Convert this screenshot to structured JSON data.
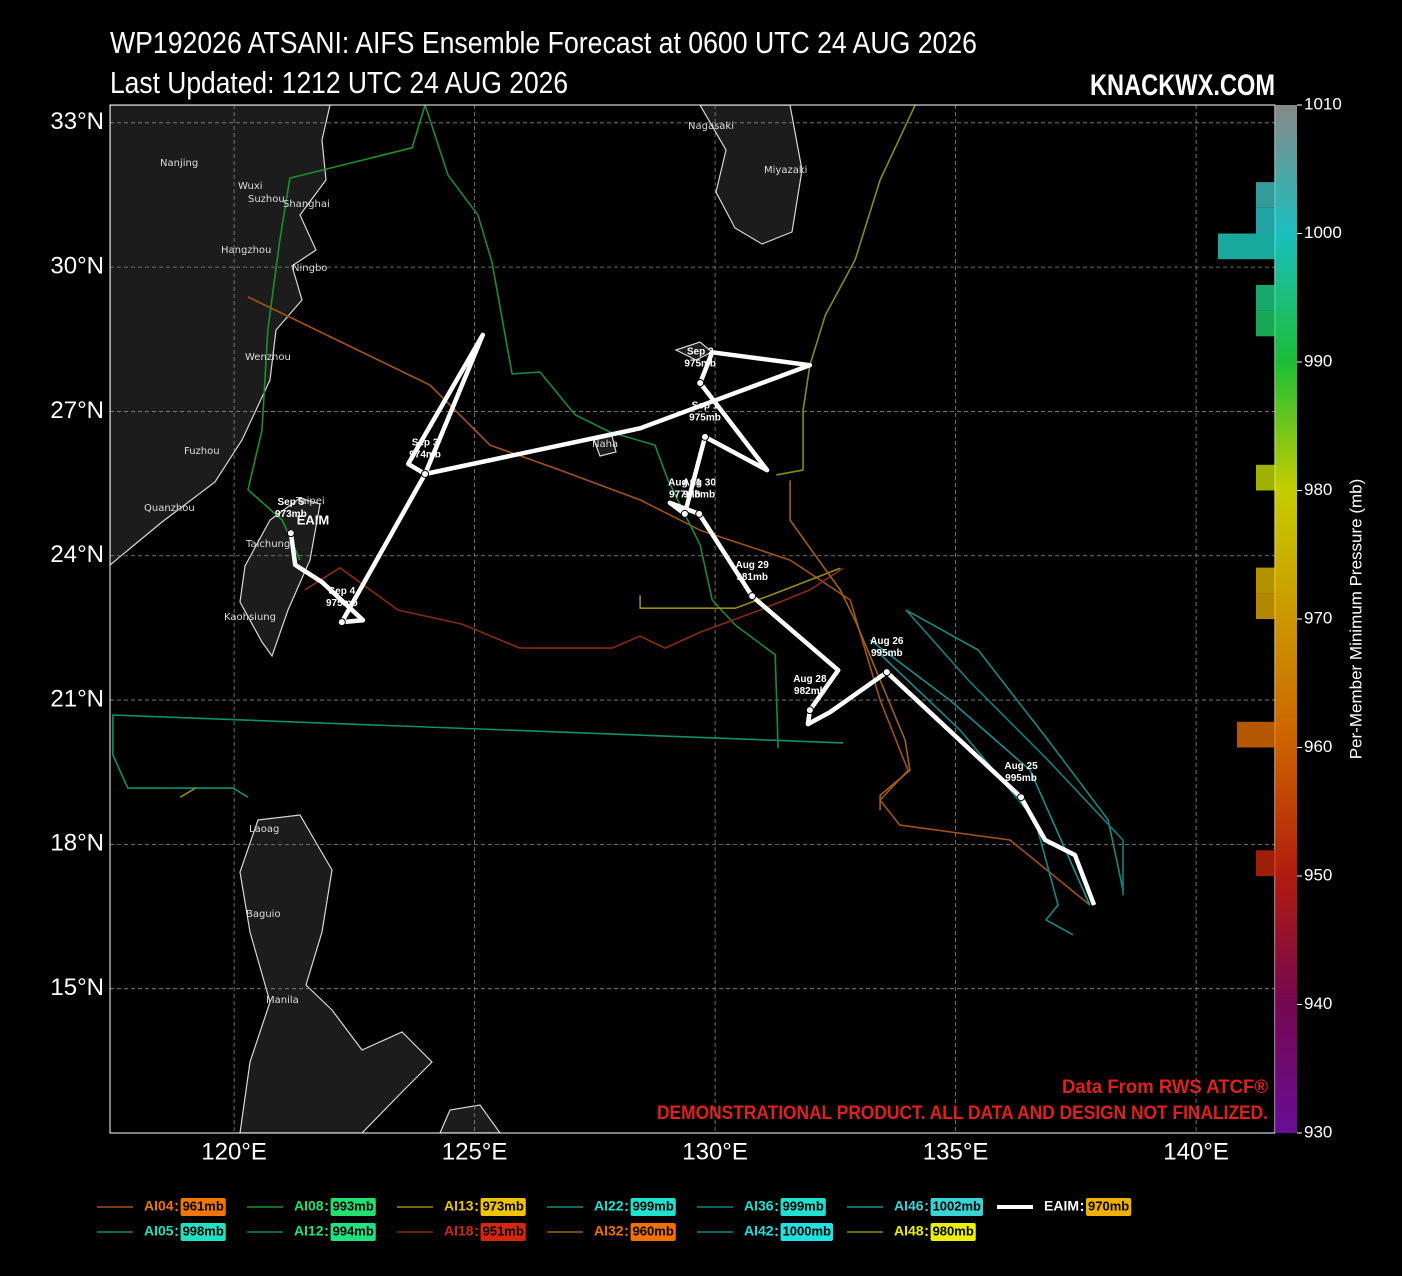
{
  "chart_data": {
    "type": "track",
    "title": "WP192026 ATSANI: AIFS Ensemble Forecast at 0600 UTC 24 AUG 2026",
    "subtitle": "Last Updated: 1212 UTC 24 AUG 2026",
    "brand": "KNACKWX.COM",
    "notes": [
      "Data From RWS ATCF®",
      "DEMONSTRATIONAL PRODUCT. ALL DATA AND DESIGN NOT FINALIZED."
    ],
    "xlim": [
      117.42,
      141.64
    ],
    "ylim": [
      12.0,
      33.37
    ],
    "xticks": [
      {
        "value": 120,
        "label": "120°E"
      },
      {
        "value": 125,
        "label": "125°E"
      },
      {
        "value": 130,
        "label": "130°E"
      },
      {
        "value": 135,
        "label": "135°E"
      },
      {
        "value": 140,
        "label": "140°E"
      }
    ],
    "yticks": [
      {
        "value": 15,
        "label": "15°N"
      },
      {
        "value": 18,
        "label": "18°N"
      },
      {
        "value": 21,
        "label": "21°N"
      },
      {
        "value": 24,
        "label": "24°N"
      },
      {
        "value": 27,
        "label": "27°N"
      },
      {
        "value": 30,
        "label": "30°N"
      },
      {
        "value": 33,
        "label": "33°N"
      }
    ],
    "grid": true,
    "places": [
      "Nanjing",
      "Wuxi",
      "Suzhou",
      "Shanghai",
      "Hangzhou",
      "Ningbo",
      "Wenzhou",
      "Fuzhou",
      "Quanzhou",
      "Taipei",
      "Taichung",
      "Kaohsiung",
      "Nagasaki",
      "Miyazaki",
      "Naha",
      "Laoag",
      "Baguio",
      "Manila"
    ],
    "colormap": [
      [
        930,
        "#7a10b0"
      ],
      [
        940,
        "#8a0860"
      ],
      [
        950,
        "#d02010"
      ],
      [
        960,
        "#f07000"
      ],
      [
        970,
        "#f0b000"
      ],
      [
        980,
        "#e8f000"
      ],
      [
        990,
        "#20e040"
      ],
      [
        1000,
        "#20e0e0"
      ],
      [
        1010,
        "#a0a0a0"
      ]
    ],
    "colorbar": {
      "label": "Per-Member Minimum Pressure (mb)",
      "lim": [
        930,
        1010
      ],
      "ticks": [
        930,
        940,
        950,
        960,
        970,
        980,
        990,
        1000,
        1010
      ],
      "bins": [
        930,
        932,
        934,
        936,
        938,
        940,
        942,
        944,
        946,
        948,
        950,
        952,
        954,
        956,
        958,
        960,
        962,
        964,
        966,
        968,
        970,
        972,
        974,
        976,
        978,
        980,
        982,
        984,
        986,
        988,
        990,
        992,
        994,
        996,
        998,
        1000,
        1002,
        1004,
        1006,
        1008,
        1010
      ],
      "counts": [
        0,
        0,
        0,
        0,
        0,
        0,
        0,
        0,
        0,
        0,
        1,
        0,
        0,
        0,
        0,
        2,
        0,
        0,
        0,
        0,
        1,
        1,
        0,
        0,
        0,
        1,
        0,
        0,
        0,
        0,
        0,
        1,
        1,
        0,
        3,
        1,
        1,
        0,
        0,
        0
      ]
    },
    "series": [
      {
        "name": "AI04",
        "min_pressure": 961,
        "value_label": "961mb",
        "color": "#a0521a",
        "lon": [
          120.29,
          124.07,
          125.32,
          126.78,
          128.44,
          129.69,
          131.56,
          132.81,
          133.43,
          134.01,
          133.43,
          133.84,
          136.13,
          137.79
        ],
        "lat": [
          29.38,
          27.55,
          26.3,
          25.78,
          25.16,
          24.53,
          23.91,
          23.08,
          21.0,
          19.54,
          18.92,
          18.4,
          18.09,
          16.74
        ]
      },
      {
        "name": "AI05",
        "min_pressure": 998,
        "value_label": "998mb",
        "color": "#0f8f6a",
        "lon": [
          132.66,
          117.48,
          117.48,
          117.79,
          119.98,
          120.29
        ],
        "lat": [
          20.11,
          20.69,
          19.86,
          19.17,
          19.17,
          18.98
        ]
      },
      {
        "name": "AI08",
        "min_pressure": 993,
        "value_label": "993mb",
        "color": "#1f8f2a",
        "lon": [
          123.97,
          123.7,
          121.16,
          120.95,
          120.7,
          120.58,
          120.29,
          121.0,
          121.37
        ],
        "lat": [
          33.37,
          32.48,
          31.85,
          30.56,
          28.69,
          26.61,
          25.37,
          24.74,
          23.91
        ]
      },
      {
        "name": "AI12",
        "min_pressure": 994,
        "value_label": "994mb",
        "color": "#188a3a",
        "lon": [
          123.97,
          124.45,
          125.07,
          125.36,
          125.78,
          126.36,
          127.09,
          127.82,
          128.75,
          129.02,
          129.69,
          129.94,
          130.42,
          131.25,
          131.31
        ],
        "lat": [
          33.37,
          31.91,
          31.08,
          30.11,
          27.78,
          27.82,
          26.93,
          26.57,
          26.3,
          25.57,
          24.22,
          23.08,
          22.56,
          21.94,
          20.0
        ]
      },
      {
        "name": "AI13",
        "min_pressure": 973,
        "value_label": "973mb",
        "color": "#9a8a10",
        "lon": [
          118.88,
          119.2,
          null,
          128.44,
          128.44,
          130.42,
          131.15,
          132.6
        ],
        "lat": [
          18.98,
          19.17,
          null,
          23.18,
          22.91,
          22.91,
          23.18,
          23.74
        ]
      },
      {
        "name": "AI18",
        "min_pressure": 951,
        "value_label": "951mb",
        "color": "#8a2a10",
        "lon": [
          121.47,
          122.2,
          123.41,
          124.74,
          125.94,
          127.86,
          128.44,
          128.96,
          129.69,
          130.93,
          131.97,
          132.66
        ],
        "lat": [
          23.29,
          23.75,
          22.87,
          22.58,
          22.08,
          22.08,
          22.33,
          22.08,
          22.41,
          22.87,
          23.29,
          23.74
        ]
      },
      {
        "name": "AI22",
        "min_pressure": 999,
        "value_label": "999mb",
        "color": "#148a80",
        "lon": [
          133.97,
          135.47,
          136.92,
          138.17,
          138.48
        ],
        "lat": [
          22.87,
          22.04,
          20.17,
          18.51,
          17.05
        ]
      },
      {
        "name": "AI32",
        "min_pressure": 960,
        "value_label": "960mb",
        "color": "#a06018",
        "lon": [
          131.56,
          131.56,
          132.08,
          132.6,
          132.91,
          133.43,
          133.95,
          134.05,
          133.43,
          133.43
        ],
        "lat": [
          25.57,
          24.74,
          24.01,
          23.29,
          22.66,
          21.42,
          20.17,
          19.54,
          19.02,
          18.71
        ]
      },
      {
        "name": "AI36",
        "min_pressure": 999,
        "value_label": "999mb",
        "color": "#148080",
        "lon": [
          133.97,
          135.26,
          136.92,
          138.48,
          138.48
        ],
        "lat": [
          22.87,
          21.42,
          19.75,
          18.09,
          16.94
        ]
      },
      {
        "name": "AI42",
        "min_pressure": 1000,
        "value_label": "1000mb",
        "color": "#148888",
        "lon": [
          133.34,
          135.09,
          136.65,
          137.13,
          136.88,
          137.44
        ],
        "lat": [
          22.04,
          20.38,
          18.51,
          16.74,
          16.43,
          16.12
        ]
      },
      {
        "name": "AI46",
        "min_pressure": 1002,
        "value_label": "1002mb",
        "color": "#1a8f90",
        "lon": [
          133.22,
          134.88,
          136.55,
          137.79
        ],
        "lat": [
          22.25,
          21.0,
          19.54,
          16.74
        ]
      },
      {
        "name": "AI48",
        "min_pressure": 980,
        "value_label": "980mb",
        "color": "#8a8a18",
        "lon": [
          134.16,
          133.43,
          132.91,
          132.29,
          131.97,
          131.83,
          131.83,
          131.27
        ],
        "lat": [
          33.37,
          31.81,
          30.15,
          29.0,
          27.96,
          27.03,
          25.78,
          25.68
        ]
      },
      {
        "name": "EAIM",
        "min_pressure": 970,
        "value_label": "970mb",
        "color": "#ffffff",
        "lon": [
          137.88,
          137.48,
          136.86,
          136.36,
          133.57,
          132.39,
          131.93,
          131.97,
          132.56,
          130.77,
          129.67,
          129.06,
          129.37,
          129.79,
          131.08,
          129.69,
          129.94,
          131.97,
          128.44,
          123.97,
          123.62,
          125.17,
          123.97,
          122.24,
          122.68,
          121.83,
          121.27,
          121.18
        ],
        "lat": [
          16.74,
          17.78,
          18.09,
          18.98,
          21.58,
          20.75,
          20.5,
          20.79,
          21.62,
          23.16,
          24.87,
          25.1,
          24.87,
          26.47,
          25.78,
          27.59,
          28.23,
          27.96,
          26.65,
          25.7,
          25.91,
          28.59,
          25.7,
          22.62,
          22.66,
          23.45,
          23.81,
          24.47
        ]
      }
    ],
    "annotations": [
      {
        "date": "Aug 25",
        "pressure": 995,
        "label": "995mb",
        "lon": 136.36,
        "lat": 18.98
      },
      {
        "date": "Aug 26",
        "pressure": 995,
        "label": "995mb",
        "lon": 133.57,
        "lat": 21.58
      },
      {
        "date": "Aug 28",
        "pressure": 982,
        "label": "982mb",
        "lon": 131.97,
        "lat": 20.79
      },
      {
        "date": "Aug 29",
        "pressure": 981,
        "label": "981mb",
        "lon": 130.77,
        "lat": 23.16
      },
      {
        "date": "Aug 30",
        "pressure": 978,
        "label": "978mb",
        "lon": 129.67,
        "lat": 24.87
      },
      {
        "date": "Aug 31",
        "pressure": 977,
        "label": "977mb",
        "lon": 129.37,
        "lat": 24.87
      },
      {
        "date": "Sep 1",
        "pressure": 975,
        "label": "975mb",
        "lon": 129.79,
        "lat": 26.47
      },
      {
        "date": "Sep 2",
        "pressure": 975,
        "label": "975mb",
        "lon": 129.69,
        "lat": 27.59
      },
      {
        "date": "Sep 3",
        "pressure": 974,
        "label": "974mb",
        "lon": 123.97,
        "lat": 25.7
      },
      {
        "date": "Sep 4",
        "pressure": 975,
        "label": "975mb",
        "lon": 122.24,
        "lat": 22.62
      },
      {
        "date": "Sep 5",
        "pressure": 973,
        "label": "973mb",
        "lon": 121.18,
        "lat": 24.47
      }
    ]
  }
}
